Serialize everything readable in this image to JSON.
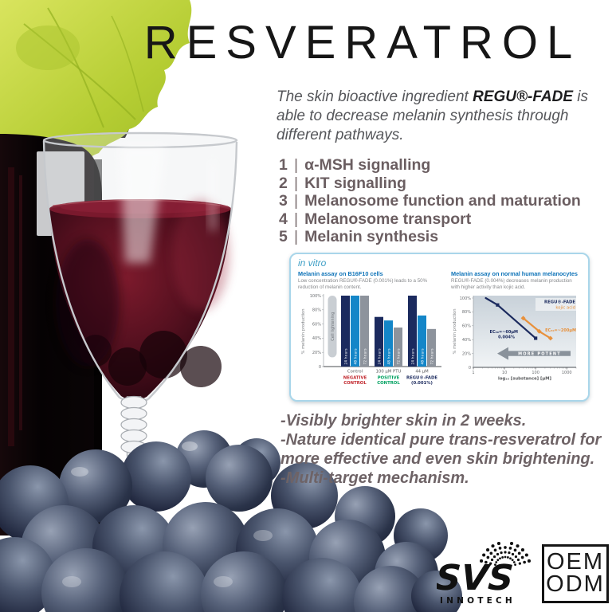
{
  "title": "RESVERATROL",
  "intro": {
    "lead": "The skin bioactive ingredient ",
    "brand": "REGU®-FADE",
    "rest": " is able to decrease melanin synthesis through different pathways."
  },
  "pathways": [
    {
      "num": "1",
      "label": "α-MSH signalling"
    },
    {
      "num": "2",
      "label": "KIT signalling"
    },
    {
      "num": "3",
      "label": "Melanosome function and maturation"
    },
    {
      "num": "4",
      "label": "Melanosome transport"
    },
    {
      "num": "5",
      "label": "Melanin synthesis"
    }
  ],
  "panel": {
    "tag": "in vitro"
  },
  "chart_data": [
    {
      "type": "bar",
      "title": "Melanin assay on B16F10 cells",
      "subtitle": "Low concentration REGU®-FADE (0.001%) leads to a 50% reduction of melanin content.",
      "ylabel": "% melanin production",
      "ylim": [
        0,
        100
      ],
      "yticks": [
        0,
        20,
        40,
        60,
        80,
        100
      ],
      "side_note": "Cell lightening",
      "categories": [
        "Control",
        "100 μM PTU",
        "44 μM"
      ],
      "category_footnotes": [
        {
          "lines": [
            "NEGATIVE",
            "CONTROL"
          ],
          "color": "#c1272d"
        },
        {
          "lines": [
            "POSITIVE",
            "CONTROL"
          ],
          "color": "#00a160"
        },
        {
          "lines": [
            "REGU®-FADE",
            "(0.001%)"
          ],
          "color": "#1b2a5e"
        }
      ],
      "series": [
        {
          "name": "24 hours",
          "color": "#1b2a5e",
          "values": [
            100,
            70,
            100
          ]
        },
        {
          "name": "48 hours",
          "color": "#1486c8",
          "values": [
            100,
            65,
            72
          ]
        },
        {
          "name": "72 hours",
          "color": "#8d939c",
          "values": [
            100,
            55,
            53
          ]
        }
      ]
    },
    {
      "type": "line",
      "title": "Melanin assay on normal human melanocytes",
      "subtitle": "REGU®-FADE (0.004%) decreases melanin production with higher activity than kojic acid.",
      "ylabel": "% melanin production",
      "xlabel": "log₁₀ [substance] [μM]",
      "xscale": "log",
      "xlim": [
        1,
        2000
      ],
      "xticks": [
        1,
        10,
        100,
        1000
      ],
      "ylim": [
        0,
        100
      ],
      "yticks": [
        0,
        20,
        40,
        60,
        80,
        100
      ],
      "series": [
        {
          "name": "REGU®-FADE",
          "color": "#1b2a5e",
          "marker": "square",
          "annotation": "EC₅₀=~60μM",
          "annotation2": "0.004%",
          "points": [
            [
              2.5,
              100
            ],
            [
              6,
              90
            ],
            [
              100,
              42
            ]
          ]
        },
        {
          "name": "kojic acid",
          "color": "#e8913c",
          "marker": "diamond",
          "annotation": "EC₅₀=~200μM",
          "points": [
            [
              40,
              71
            ],
            [
              130,
              52
            ],
            [
              300,
              42
            ]
          ]
        }
      ],
      "arrow_label": "MORE POTENT"
    }
  ],
  "benefits": [
    "-Visibly brighter skin in 2 weeks.",
    "-Nature identical pure trans-resveratrol for more effective and even skin brightening.",
    "-Multi-target mechanism."
  ],
  "logo": {
    "brand": "SVS",
    "sub": "INNOTECH",
    "badge_line1": "OEM",
    "badge_line2": "ODM"
  },
  "colors": {
    "panel_border": "#a9d6ea",
    "chart_blue": "#0e73b8",
    "navy": "#1b2a5e",
    "bright_blue": "#1486c8",
    "bar_gray": "#8d939c",
    "orange": "#e8913c",
    "negative_red": "#c1272d",
    "positive_green": "#00a160",
    "arrow_gray": "#8a929b"
  }
}
